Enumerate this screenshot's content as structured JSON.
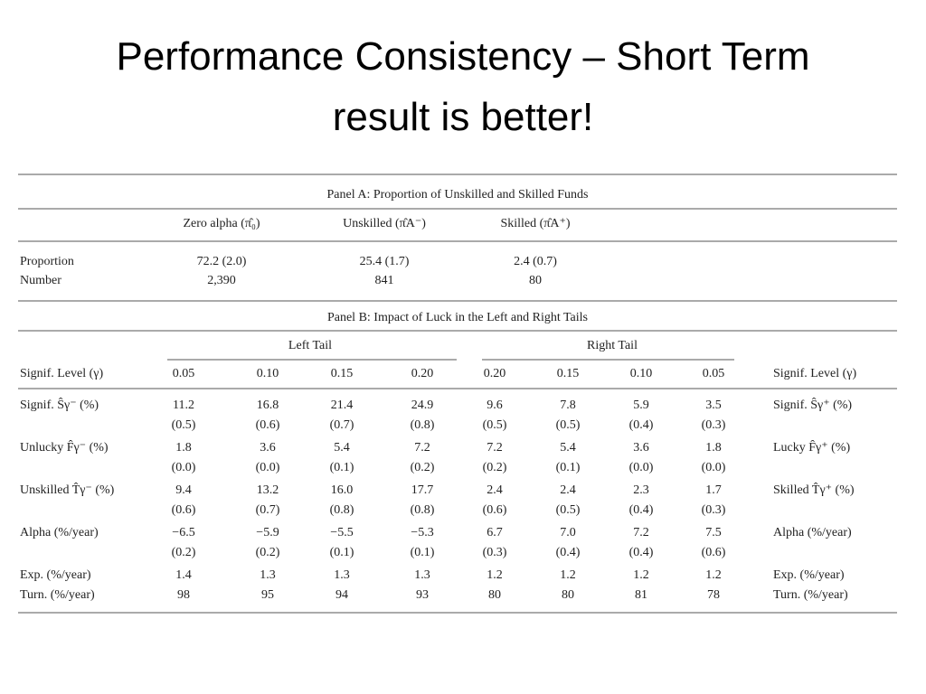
{
  "title": "Performance Consistency – Short Term result is better!",
  "panel_a": {
    "title": "Panel A: Proportion of Unskilled and Skilled Funds",
    "headers": [
      "Zero alpha (π̂₀)",
      "Unskilled (π̂A⁻)",
      "Skilled (π̂A⁺)"
    ],
    "rows": [
      {
        "label": "Proportion",
        "cells": [
          "72.2 (2.0)",
          "25.4 (1.7)",
          "2.4 (0.7)"
        ]
      },
      {
        "label": "Number",
        "cells": [
          "2,390",
          "841",
          "80"
        ]
      }
    ]
  },
  "panel_b": {
    "title": "Panel B: Impact of Luck in the Left and Right Tails",
    "groups": [
      "Left Tail",
      "Right Tail"
    ],
    "level_label_left": "Signif. Level (γ)",
    "levels": [
      "0.05",
      "0.10",
      "0.15",
      "0.20",
      "0.20",
      "0.15",
      "0.10",
      "0.05"
    ],
    "level_label_right": "Signif. Level (γ)",
    "rows": [
      {
        "left": "Signif. Ŝγ⁻ (%)",
        "values": [
          "11.2",
          "16.8",
          "21.4",
          "24.9",
          "9.6",
          "7.8",
          "5.9",
          "3.5"
        ],
        "errors": [
          "(0.5)",
          "(0.6)",
          "(0.7)",
          "(0.8)",
          "(0.5)",
          "(0.5)",
          "(0.4)",
          "(0.3)"
        ],
        "right": "Signif. Ŝγ⁺ (%)"
      },
      {
        "left": "Unlucky F̂γ⁻ (%)",
        "values": [
          "1.8",
          "3.6",
          "5.4",
          "7.2",
          "7.2",
          "5.4",
          "3.6",
          "1.8"
        ],
        "errors": [
          "(0.0)",
          "(0.0)",
          "(0.1)",
          "(0.2)",
          "(0.2)",
          "(0.1)",
          "(0.0)",
          "(0.0)"
        ],
        "right": "Lucky F̂γ⁺ (%)"
      },
      {
        "left": "Unskilled T̂γ⁻ (%)",
        "values": [
          "9.4",
          "13.2",
          "16.0",
          "17.7",
          "2.4",
          "2.4",
          "2.3",
          "1.7"
        ],
        "errors": [
          "(0.6)",
          "(0.7)",
          "(0.8)",
          "(0.8)",
          "(0.6)",
          "(0.5)",
          "(0.4)",
          "(0.3)"
        ],
        "right": "Skilled T̂γ⁺ (%)"
      },
      {
        "left": "Alpha (%/year)",
        "values": [
          "−6.5",
          "−5.9",
          "−5.5",
          "−5.3",
          "6.7",
          "7.0",
          "7.2",
          "7.5"
        ],
        "errors": [
          "(0.2)",
          "(0.2)",
          "(0.1)",
          "(0.1)",
          "(0.3)",
          "(0.4)",
          "(0.4)",
          "(0.6)"
        ],
        "right": "Alpha (%/year)"
      },
      {
        "left": "Exp. (%/year)",
        "values": [
          "1.4",
          "1.3",
          "1.3",
          "1.3",
          "1.2",
          "1.2",
          "1.2",
          "1.2"
        ],
        "right": "Exp. (%/year)"
      },
      {
        "left": "Turn. (%/year)",
        "values": [
          "98",
          "95",
          "94",
          "93",
          "80",
          "80",
          "81",
          "78"
        ],
        "right": "Turn. (%/year)"
      }
    ]
  }
}
